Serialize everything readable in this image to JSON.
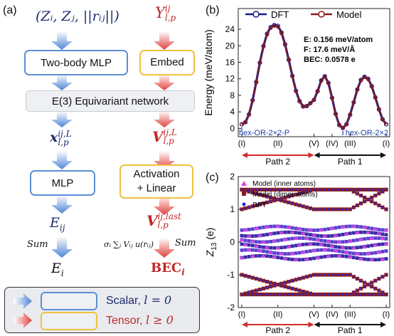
{
  "panel_a": {
    "label": "(a)",
    "input_left": "(Zᵢ, Zⱼ, ||rᵢⱼ||)",
    "input_right": "Y",
    "input_right_sup": "ij",
    "input_right_sub": "l,p",
    "box_two_body": "Two-body MLP",
    "box_embed": "Embed",
    "box_equivariant": "E(3) Equivariant network",
    "feat_left": "x",
    "feat_left_sup": "ij,L",
    "feat_left_sub": "l,p",
    "feat_right": "V",
    "feat_right_sup": "ij,L",
    "feat_right_sub": "l,p",
    "box_mlp": "MLP",
    "box_activation_line1": "Activation",
    "box_activation_line2": "+ Linear",
    "out_left": "E",
    "out_left_sub": "ij",
    "out_right": "V",
    "out_right_sup": "ij,last",
    "out_right_sub": "l,p",
    "sum_left": "Sum",
    "sum_right": "Sum",
    "sum_formula": "σᵢ ∑ⱼ Vᵢⱼ u(rᵢⱼ)",
    "final_left": "E",
    "final_left_sub": "i",
    "final_right": "BEC",
    "final_right_sub": "i",
    "legend": [
      {
        "label": "Scalar, ",
        "math": "l = 0",
        "color": "#1d2a6b"
      },
      {
        "label": "Tensor, ",
        "math": "l ≥ 0",
        "color": "#c0282a"
      }
    ]
  },
  "chart_data": [
    {
      "panel": "(b)",
      "type": "line",
      "ylabel": "Energy (meV/atom)",
      "ylim": [
        -2,
        29
      ],
      "yticks": [
        0,
        4,
        8,
        12,
        16,
        20,
        24
      ],
      "xticks": [
        "(I)",
        "(II)",
        "(V)",
        "(IV)",
        "(III)",
        "(I)"
      ],
      "x_tick_positions": [
        0,
        1,
        2,
        2.5,
        3,
        4
      ],
      "grid": false,
      "legend_position": "top",
      "series": [
        {
          "name": "DFT",
          "color": "#1a1a8c",
          "marker": "open-circle",
          "x": [
            0,
            0.1,
            0.2,
            0.3,
            0.4,
            0.5,
            0.6,
            0.7,
            0.8,
            0.9,
            1.0,
            1.1,
            1.2,
            1.3,
            1.4,
            1.5,
            1.6,
            1.7,
            1.8,
            1.9,
            2.0,
            2.1,
            2.2,
            2.3,
            2.4,
            2.5,
            2.6,
            2.7,
            2.8,
            2.9,
            3.0,
            3.1,
            3.2,
            3.3,
            3.4,
            3.5,
            3.6,
            3.7,
            3.8,
            3.9,
            4.0
          ],
          "y": [
            1.0,
            1.5,
            3.4,
            6.8,
            11.2,
            15.9,
            19.9,
            22.9,
            24.5,
            25.0,
            24.8,
            23.2,
            20.3,
            16.6,
            12.7,
            9.1,
            6.6,
            5.3,
            5.4,
            6.1,
            6.9,
            9.0,
            11.6,
            12.6,
            11.0,
            7.4,
            3.5,
            0.8,
            0.1,
            1.0,
            3.3,
            6.3,
            9.4,
            11.7,
            12.5,
            12.0,
            10.2,
            7.5,
            4.6,
            2.2,
            1.0
          ]
        },
        {
          "name": "Model",
          "color": "#8b1a1a",
          "marker": "open-circle",
          "x": [
            0,
            0.1,
            0.2,
            0.3,
            0.4,
            0.5,
            0.6,
            0.7,
            0.8,
            0.9,
            1.0,
            1.1,
            1.2,
            1.3,
            1.4,
            1.5,
            1.6,
            1.7,
            1.8,
            1.9,
            2.0,
            2.1,
            2.2,
            2.3,
            2.4,
            2.5,
            2.6,
            2.7,
            2.8,
            2.9,
            3.0,
            3.1,
            3.2,
            3.3,
            3.4,
            3.5,
            3.6,
            3.7,
            3.8,
            3.9,
            4.0
          ],
          "y": [
            1.0,
            1.5,
            3.3,
            6.7,
            11.1,
            15.8,
            19.8,
            22.7,
            24.3,
            24.8,
            24.6,
            23.0,
            20.2,
            16.5,
            12.6,
            9.0,
            6.6,
            5.3,
            5.4,
            6.1,
            6.9,
            9.0,
            11.5,
            12.5,
            11.0,
            7.4,
            3.5,
            0.8,
            0.1,
            1.0,
            3.3,
            6.3,
            9.4,
            11.6,
            12.4,
            11.9,
            10.1,
            7.4,
            4.6,
            2.2,
            1.0
          ]
        }
      ],
      "annotations": [
        {
          "text": "E: 0.156 meV/atom"
        },
        {
          "text": "F: 17.6 meV/Å"
        },
        {
          "text": "BEC: 0.0578 e"
        },
        {
          "text": "hex-OR-2×2-P",
          "color": "#1a3fa8"
        },
        {
          "text": "hex-OR-2×2",
          "color": "#1a3fa8"
        },
        {
          "text": "Path 2",
          "color": "#c0282a"
        },
        {
          "text": "Path 1",
          "color": "#111111"
        }
      ]
    },
    {
      "panel": "(c)",
      "type": "scatter",
      "ylabel": "Z",
      "ylabel_sub": "13",
      "ylabel_unit": "(e)",
      "ylim": [
        -2,
        2
      ],
      "yticks": [
        -2,
        -1,
        0,
        1,
        2
      ],
      "xticks": [
        "(I)",
        "(II)",
        "(V)",
        "(IV)",
        "(III)",
        "(I)"
      ],
      "x_tick_positions": [
        0,
        1,
        2,
        2.5,
        3,
        4
      ],
      "grid": false,
      "legend_position": "top-left",
      "series": [
        {
          "name": "Model (inner atoms)",
          "color": "#e040e0",
          "marker": "triangle"
        },
        {
          "name": "Model (dimer atoms)",
          "color": "#8b1a1a",
          "marker": "square"
        },
        {
          "name": "DFT",
          "color": "#2a2ad0",
          "marker": "dot"
        }
      ],
      "bands_described": {
        "upper_flat": 1.6,
        "upper_crossing_a": [
          1.6,
          1.0
        ],
        "upper_crossing_b": [
          1.0,
          1.6
        ],
        "middle_cluster_center": 0.0,
        "lower_crossing_a": [
          -1.0,
          -1.6
        ],
        "lower_crossing_b": [
          -1.6,
          -1.0
        ]
      },
      "annotations": [
        {
          "text": "Path 2",
          "color": "#c0282a"
        },
        {
          "text": "Path 1",
          "color": "#111111"
        }
      ]
    }
  ]
}
